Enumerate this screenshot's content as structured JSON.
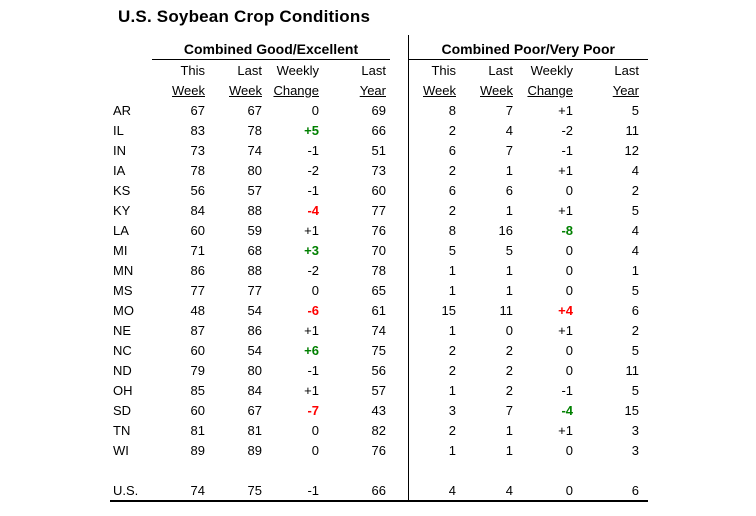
{
  "title": "U.S. Soybean Crop Conditions",
  "colors": {
    "green": "#008000",
    "red": "#FF0000",
    "black": "#000000"
  },
  "sections": [
    {
      "label": "Combined Good/Excellent"
    },
    {
      "label": "Combined Poor/Very Poor"
    }
  ],
  "column_headers_line1": [
    "This",
    "Last",
    "Weekly",
    "Last"
  ],
  "column_headers_line2": [
    "Week",
    "Week",
    "Change",
    "Year"
  ],
  "rows": [
    {
      "state": "AR",
      "good_excellent": {
        "this_week": "67",
        "last_week": "67",
        "weekly_change": "0",
        "change_color": "black",
        "last_year": "69"
      },
      "poor_very_poor": {
        "this_week": "8",
        "last_week": "7",
        "weekly_change": "+1",
        "change_color": "black",
        "last_year": "5"
      }
    },
    {
      "state": "IL",
      "good_excellent": {
        "this_week": "83",
        "last_week": "78",
        "weekly_change": "+5",
        "change_color": "green",
        "last_year": "66"
      },
      "poor_very_poor": {
        "this_week": "2",
        "last_week": "4",
        "weekly_change": "-2",
        "change_color": "black",
        "last_year": "11"
      }
    },
    {
      "state": "IN",
      "good_excellent": {
        "this_week": "73",
        "last_week": "74",
        "weekly_change": "-1",
        "change_color": "black",
        "last_year": "51"
      },
      "poor_very_poor": {
        "this_week": "6",
        "last_week": "7",
        "weekly_change": "-1",
        "change_color": "black",
        "last_year": "12"
      }
    },
    {
      "state": "IA",
      "good_excellent": {
        "this_week": "78",
        "last_week": "80",
        "weekly_change": "-2",
        "change_color": "black",
        "last_year": "73"
      },
      "poor_very_poor": {
        "this_week": "2",
        "last_week": "1",
        "weekly_change": "+1",
        "change_color": "black",
        "last_year": "4"
      }
    },
    {
      "state": "KS",
      "good_excellent": {
        "this_week": "56",
        "last_week": "57",
        "weekly_change": "-1",
        "change_color": "black",
        "last_year": "60"
      },
      "poor_very_poor": {
        "this_week": "6",
        "last_week": "6",
        "weekly_change": "0",
        "change_color": "black",
        "last_year": "2"
      }
    },
    {
      "state": "KY",
      "good_excellent": {
        "this_week": "84",
        "last_week": "88",
        "weekly_change": "-4",
        "change_color": "red",
        "last_year": "77"
      },
      "poor_very_poor": {
        "this_week": "2",
        "last_week": "1",
        "weekly_change": "+1",
        "change_color": "black",
        "last_year": "5"
      }
    },
    {
      "state": "LA",
      "good_excellent": {
        "this_week": "60",
        "last_week": "59",
        "weekly_change": "+1",
        "change_color": "black",
        "last_year": "76"
      },
      "poor_very_poor": {
        "this_week": "8",
        "last_week": "16",
        "weekly_change": "-8",
        "change_color": "green",
        "last_year": "4"
      }
    },
    {
      "state": "MI",
      "good_excellent": {
        "this_week": "71",
        "last_week": "68",
        "weekly_change": "+3",
        "change_color": "green",
        "last_year": "70"
      },
      "poor_very_poor": {
        "this_week": "5",
        "last_week": "5",
        "weekly_change": "0",
        "change_color": "black",
        "last_year": "4"
      }
    },
    {
      "state": "MN",
      "good_excellent": {
        "this_week": "86",
        "last_week": "88",
        "weekly_change": "-2",
        "change_color": "black",
        "last_year": "78"
      },
      "poor_very_poor": {
        "this_week": "1",
        "last_week": "1",
        "weekly_change": "0",
        "change_color": "black",
        "last_year": "1"
      }
    },
    {
      "state": "MS",
      "good_excellent": {
        "this_week": "77",
        "last_week": "77",
        "weekly_change": "0",
        "change_color": "black",
        "last_year": "65"
      },
      "poor_very_poor": {
        "this_week": "1",
        "last_week": "1",
        "weekly_change": "0",
        "change_color": "black",
        "last_year": "5"
      }
    },
    {
      "state": "MO",
      "good_excellent": {
        "this_week": "48",
        "last_week": "54",
        "weekly_change": "-6",
        "change_color": "red",
        "last_year": "61"
      },
      "poor_very_poor": {
        "this_week": "15",
        "last_week": "11",
        "weekly_change": "+4",
        "change_color": "red",
        "last_year": "6"
      }
    },
    {
      "state": "NE",
      "good_excellent": {
        "this_week": "87",
        "last_week": "86",
        "weekly_change": "+1",
        "change_color": "black",
        "last_year": "74"
      },
      "poor_very_poor": {
        "this_week": "1",
        "last_week": "0",
        "weekly_change": "+1",
        "change_color": "black",
        "last_year": "2"
      }
    },
    {
      "state": "NC",
      "good_excellent": {
        "this_week": "60",
        "last_week": "54",
        "weekly_change": "+6",
        "change_color": "green",
        "last_year": "75"
      },
      "poor_very_poor": {
        "this_week": "2",
        "last_week": "2",
        "weekly_change": "0",
        "change_color": "black",
        "last_year": "5"
      }
    },
    {
      "state": "ND",
      "good_excellent": {
        "this_week": "79",
        "last_week": "80",
        "weekly_change": "-1",
        "change_color": "black",
        "last_year": "56"
      },
      "poor_very_poor": {
        "this_week": "2",
        "last_week": "2",
        "weekly_change": "0",
        "change_color": "black",
        "last_year": "11"
      }
    },
    {
      "state": "OH",
      "good_excellent": {
        "this_week": "85",
        "last_week": "84",
        "weekly_change": "+1",
        "change_color": "black",
        "last_year": "57"
      },
      "poor_very_poor": {
        "this_week": "1",
        "last_week": "2",
        "weekly_change": "-1",
        "change_color": "black",
        "last_year": "5"
      }
    },
    {
      "state": "SD",
      "good_excellent": {
        "this_week": "60",
        "last_week": "67",
        "weekly_change": "-7",
        "change_color": "red",
        "last_year": "43"
      },
      "poor_very_poor": {
        "this_week": "3",
        "last_week": "7",
        "weekly_change": "-4",
        "change_color": "green",
        "last_year": "15"
      }
    },
    {
      "state": "TN",
      "good_excellent": {
        "this_week": "81",
        "last_week": "81",
        "weekly_change": "0",
        "change_color": "black",
        "last_year": "82"
      },
      "poor_very_poor": {
        "this_week": "2",
        "last_week": "1",
        "weekly_change": "+1",
        "change_color": "black",
        "last_year": "3"
      }
    },
    {
      "state": "WI",
      "good_excellent": {
        "this_week": "89",
        "last_week": "89",
        "weekly_change": "0",
        "change_color": "black",
        "last_year": "76"
      },
      "poor_very_poor": {
        "this_week": "1",
        "last_week": "1",
        "weekly_change": "0",
        "change_color": "black",
        "last_year": "3"
      }
    }
  ],
  "total_row": {
    "state": "U.S.",
    "good_excellent": {
      "this_week": "74",
      "last_week": "75",
      "weekly_change": "-1",
      "change_color": "black",
      "last_year": "66"
    },
    "poor_very_poor": {
      "this_week": "4",
      "last_week": "4",
      "weekly_change": "0",
      "change_color": "black",
      "last_year": "6"
    }
  }
}
